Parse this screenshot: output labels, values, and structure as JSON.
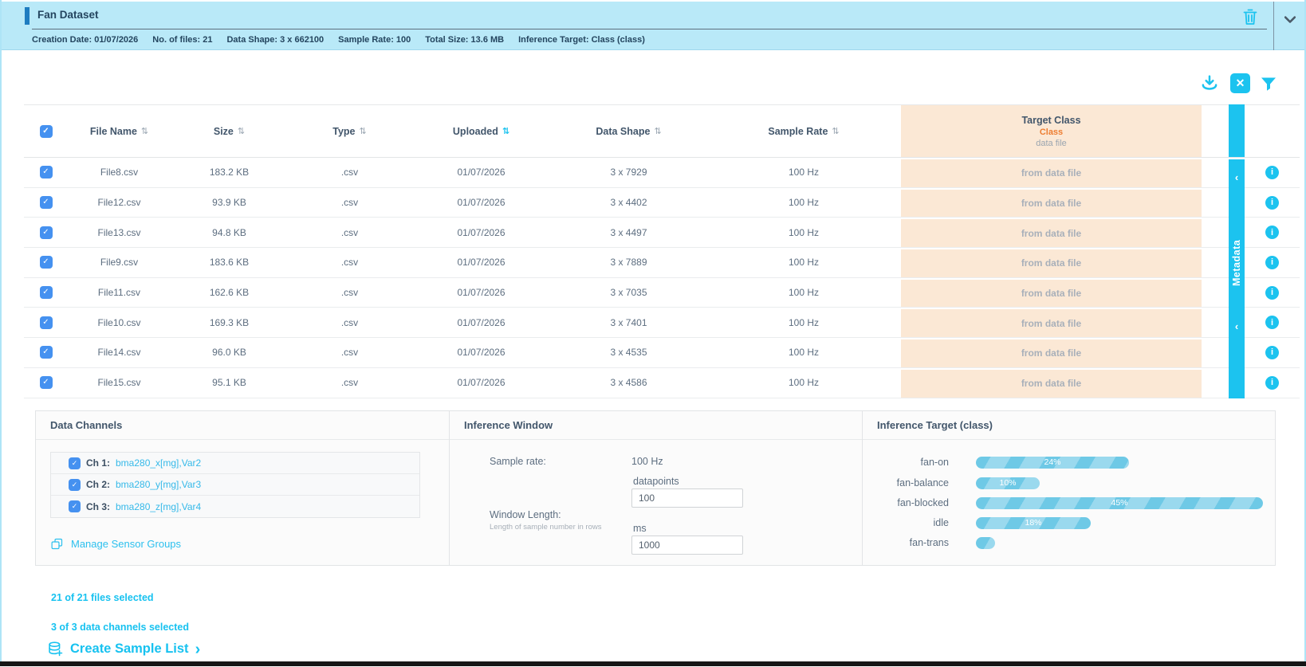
{
  "header": {
    "title": "Fan Dataset",
    "meta": [
      "Creation Date: 01/07/2026",
      "No. of files: 21",
      "Data Shape: 3 x 662100",
      "Sample Rate: 100",
      "Total Size: 13.6 MB",
      "Inference Target: Class (class)"
    ]
  },
  "icons": {
    "sort": "⇅",
    "check": "✓",
    "info": "i",
    "chevron_left": "‹",
    "chevron_right": "›",
    "close": "✕"
  },
  "table": {
    "sort_active_index": 3,
    "columns": [
      {
        "label": "File Name"
      },
      {
        "label": "Size"
      },
      {
        "label": "Type"
      },
      {
        "label": "Uploaded"
      },
      {
        "label": "Data Shape"
      },
      {
        "label": "Sample Rate"
      }
    ],
    "target_class": {
      "title": "Target Class",
      "selected": "Class",
      "source": "data file"
    },
    "metadata_tab_label": "Metadata",
    "rows": [
      {
        "file": "File8.csv",
        "size": "183.2 KB",
        "type": ".csv",
        "uploaded": "01/07/2026",
        "shape": "3 x 7929",
        "rate": "100 Hz",
        "target": "from data file"
      },
      {
        "file": "File12.csv",
        "size": "93.9 KB",
        "type": ".csv",
        "uploaded": "01/07/2026",
        "shape": "3 x 4402",
        "rate": "100 Hz",
        "target": "from data file"
      },
      {
        "file": "File13.csv",
        "size": "94.8 KB",
        "type": ".csv",
        "uploaded": "01/07/2026",
        "shape": "3 x 4497",
        "rate": "100 Hz",
        "target": "from data file"
      },
      {
        "file": "File9.csv",
        "size": "183.6 KB",
        "type": ".csv",
        "uploaded": "01/07/2026",
        "shape": "3 x 7889",
        "rate": "100 Hz",
        "target": "from data file"
      },
      {
        "file": "File11.csv",
        "size": "162.6 KB",
        "type": ".csv",
        "uploaded": "01/07/2026",
        "shape": "3 x 7035",
        "rate": "100 Hz",
        "target": "from data file"
      },
      {
        "file": "File10.csv",
        "size": "169.3 KB",
        "type": ".csv",
        "uploaded": "01/07/2026",
        "shape": "3 x 7401",
        "rate": "100 Hz",
        "target": "from data file"
      },
      {
        "file": "File14.csv",
        "size": "96.0 KB",
        "type": ".csv",
        "uploaded": "01/07/2026",
        "shape": "3 x 4535",
        "rate": "100 Hz",
        "target": "from data file"
      },
      {
        "file": "File15.csv",
        "size": "95.1 KB",
        "type": ".csv",
        "uploaded": "01/07/2026",
        "shape": "3 x 4586",
        "rate": "100 Hz",
        "target": "from data file"
      }
    ]
  },
  "panels": {
    "data_channels": {
      "title": "Data Channels",
      "channels": [
        {
          "label": "Ch 1:",
          "value": "bma280_x[mg],Var2"
        },
        {
          "label": "Ch 2:",
          "value": "bma280_y[mg],Var3"
        },
        {
          "label": "Ch 3:",
          "value": "bma280_z[mg],Var4"
        }
      ],
      "manage_link": "Manage Sensor Groups"
    },
    "inference_window": {
      "title": "Inference Window",
      "sample_rate_label": "Sample rate:",
      "sample_rate_value": "100 Hz",
      "datapoints_label": "datapoints",
      "datapoints_value": "100",
      "window_length_label": "Window Length:",
      "window_length_hint": "Length of sample number in rows",
      "ms_label": "ms",
      "ms_value": "1000"
    },
    "inference_target": {
      "title": "Inference Target (class)",
      "chart_data": {
        "type": "bar",
        "orientation": "horizontal",
        "categories": [
          "fan-on",
          "fan-balance",
          "fan-blocked",
          "idle",
          "fan-trans"
        ],
        "values": [
          24,
          10,
          45,
          18,
          3
        ],
        "value_labels": [
          "24%",
          "10%",
          "45%",
          "18%",
          ""
        ],
        "unit": "percent",
        "xlim": [
          0,
          100
        ]
      }
    }
  },
  "footer": {
    "files_selected": "21 of 21 files selected",
    "channels_selected": "3 of 3 data channels selected",
    "create_sample_list": "Create Sample List"
  },
  "colors": {
    "accent_cyan": "#1cc3ef",
    "checkbox_blue": "#4591f0",
    "target_class_bg": "#fbe8d5",
    "class_orange": "#ed7d31",
    "header_bg": "#b9e9f8",
    "bar_fill": "#6ec9e6"
  }
}
